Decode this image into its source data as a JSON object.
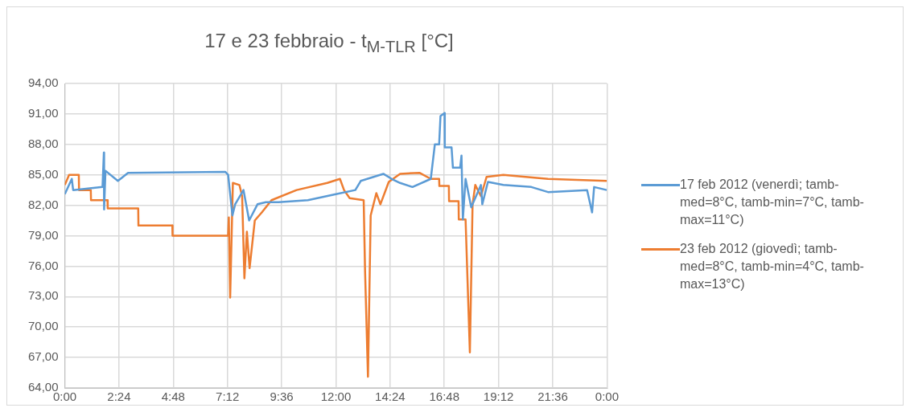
{
  "chart_data": {
    "type": "line",
    "title": "17 e 23 febbraio - t$_{M-TLR}$ [°C]",
    "xlim": [
      0,
      24
    ],
    "xticks": [
      {
        "value": 0,
        "label": "0:00"
      },
      {
        "value": 2.4,
        "label": "2:24"
      },
      {
        "value": 4.8,
        "label": "4:48"
      },
      {
        "value": 7.2,
        "label": "7:12"
      },
      {
        "value": 9.6,
        "label": "9:36"
      },
      {
        "value": 12,
        "label": "12:00"
      },
      {
        "value": 14.4,
        "label": "14:24"
      },
      {
        "value": 16.8,
        "label": "16:48"
      },
      {
        "value": 19.2,
        "label": "19:12"
      },
      {
        "value": 21.6,
        "label": "21:36"
      },
      {
        "value": 24,
        "label": "0:00"
      }
    ],
    "ylim": [
      64,
      94
    ],
    "yticks": [
      {
        "value": 64,
        "label": "64,00"
      },
      {
        "value": 67,
        "label": "67,00"
      },
      {
        "value": 70,
        "label": "70,00"
      },
      {
        "value": 73,
        "label": "73,00"
      },
      {
        "value": 76,
        "label": "76,00"
      },
      {
        "value": 79,
        "label": "79,00"
      },
      {
        "value": 82,
        "label": "82,00"
      },
      {
        "value": 85,
        "label": "85,00"
      },
      {
        "value": 88,
        "label": "88,00"
      },
      {
        "value": 91,
        "label": "91,00"
      },
      {
        "value": 94,
        "label": "94,00"
      }
    ],
    "grid": true,
    "legend": "right",
    "marker": "none",
    "line_style": "solid",
    "series": [
      {
        "name": "17 feb 2012 (venerdì; tamb-med=8°C, tamb-min=7°C, tamb-max=11°C)",
        "color": "#5b9bd5",
        "x": [
          0,
          0.31,
          0.37,
          1.67,
          1.73,
          1.74,
          1.8,
          2.35,
          2.8,
          7.1,
          7.23,
          7.42,
          7.54,
          7.91,
          8.16,
          8.53,
          8.9,
          9.46,
          10.76,
          12.0,
          12.86,
          13.1,
          14.1,
          14.47,
          14.84,
          15.39,
          16.2,
          16.38,
          16.57,
          16.63,
          16.81,
          16.82,
          17.12,
          17.18,
          17.5,
          17.56,
          17.62,
          17.74,
          17.99,
          18.42,
          18.48,
          18.73,
          19.41,
          20.65,
          21.39,
          23.12,
          23.34,
          23.43,
          23.99
        ],
        "values": [
          83.1,
          84.6,
          83.5,
          83.8,
          87.2,
          81.6,
          85.4,
          84.4,
          85.2,
          85.3,
          85.0,
          81.0,
          82.1,
          83.5,
          80.5,
          82.1,
          82.3,
          82.3,
          82.5,
          83.1,
          83.5,
          84.4,
          85.1,
          84.6,
          84.2,
          83.8,
          84.6,
          88.0,
          88.0,
          90.8,
          91.1,
          87.7,
          87.7,
          85.7,
          85.7,
          86.9,
          80.6,
          84.6,
          81.8,
          84.0,
          82.1,
          84.3,
          84.0,
          83.8,
          83.3,
          83.5,
          81.3,
          83.8,
          83.5
        ]
      },
      {
        "name": "23 feb 2012 (giovedì; tamb-med=8°C, tamb-min=4°C, tamb-max=13°C)",
        "color": "#ed7d31",
        "x": [
          0,
          0.19,
          0.62,
          0.63,
          1.15,
          1.16,
          1.89,
          1.9,
          3.25,
          3.26,
          4.76,
          4.77,
          7.23,
          7.26,
          7.32,
          7.44,
          7.73,
          7.85,
          7.95,
          8.06,
          8.18,
          8.41,
          8.72,
          9.15,
          10.26,
          11.62,
          12.18,
          12.36,
          12.61,
          13.23,
          13.29,
          13.42,
          13.54,
          13.79,
          13.97,
          14.34,
          14.84,
          15.7,
          16.2,
          16.57,
          16.58,
          17.0,
          17.01,
          17.43,
          17.44,
          17.74,
          17.93,
          18.05,
          18.17,
          18.42,
          18.67,
          19.41,
          21.39,
          23.99
        ],
        "values": [
          84.0,
          85.0,
          85.0,
          83.5,
          83.5,
          82.5,
          82.5,
          81.7,
          81.7,
          80.0,
          80.0,
          79.0,
          79.0,
          80.8,
          72.9,
          84.2,
          84.0,
          82.9,
          74.8,
          79.4,
          75.8,
          80.5,
          81.3,
          82.5,
          83.5,
          84.2,
          84.6,
          83.5,
          82.7,
          82.5,
          75.6,
          65.1,
          81.0,
          83.2,
          82.1,
          84.3,
          85.1,
          85.2,
          84.6,
          84.6,
          83.9,
          83.9,
          82.4,
          82.4,
          80.6,
          80.6,
          67.5,
          82.1,
          84.0,
          82.9,
          84.8,
          85.0,
          84.6,
          84.4
        ]
      }
    ]
  }
}
